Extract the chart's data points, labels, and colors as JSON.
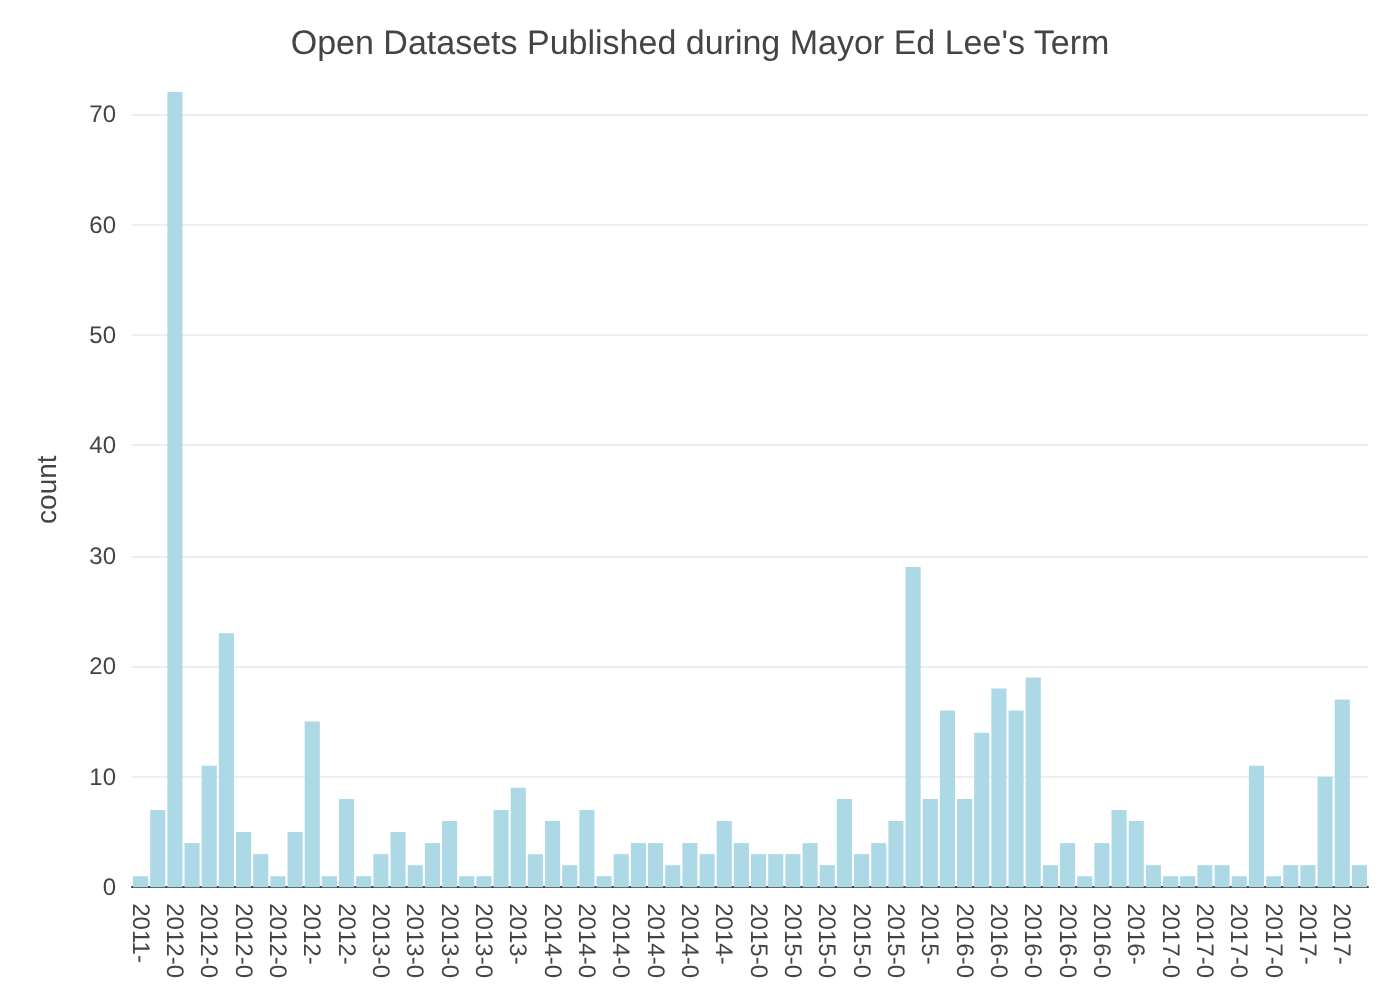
{
  "chart_data": {
    "type": "bar",
    "title": "Open Datasets Published during Mayor Ed Lee's Term",
    "ylabel": "count",
    "categories": [
      "2011-",
      null,
      "2012-0",
      null,
      "2012-0",
      null,
      "2012-0",
      null,
      "2012-0",
      null,
      "2012-",
      null,
      "2012-",
      null,
      "2013-0",
      null,
      "2013-0",
      null,
      "2013-0",
      null,
      "2013-0",
      null,
      "2013-",
      null,
      "2014-0",
      null,
      "2014-0",
      null,
      "2014-0",
      null,
      "2014-0",
      null,
      "2014-0",
      null,
      "2014-",
      null,
      "2015-0",
      null,
      "2015-0",
      null,
      "2015-0",
      null,
      "2015-0",
      null,
      "2015-0",
      null,
      "2015-",
      null,
      "2016-0",
      null,
      "2016-0",
      null,
      "2016-0",
      null,
      "2016-0",
      null,
      "2016-0",
      null,
      "2016-",
      null,
      "2017-0",
      null,
      "2017-0",
      null,
      "2017-0",
      null,
      "2017-0",
      null,
      "2017-",
      null,
      "2017-",
      null
    ],
    "values": [
      1,
      7,
      72,
      4,
      11,
      23,
      5,
      3,
      1,
      5,
      15,
      1,
      8,
      1,
      3,
      5,
      2,
      4,
      6,
      1,
      1,
      7,
      9,
      3,
      6,
      2,
      7,
      1,
      3,
      4,
      4,
      2,
      4,
      3,
      6,
      4,
      3,
      3,
      3,
      4,
      2,
      8,
      3,
      4,
      6,
      29,
      8,
      16,
      8,
      14,
      18,
      16,
      19,
      2,
      4,
      1,
      4,
      7,
      6,
      2,
      1,
      1,
      2,
      2,
      1,
      11,
      1,
      2,
      2,
      10,
      17,
      2
    ],
    "color": "#add8e6",
    "ylim": [
      0,
      72
    ],
    "yticks": [
      0,
      10,
      20,
      30,
      40,
      50,
      60,
      70
    ],
    "grid": "y"
  }
}
